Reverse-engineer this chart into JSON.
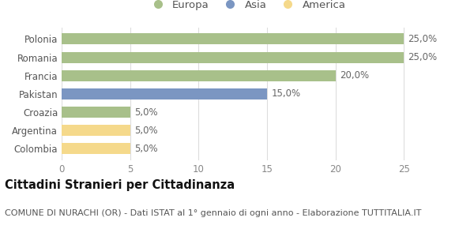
{
  "categories": [
    "Colombia",
    "Argentina",
    "Croazia",
    "Pakistan",
    "Francia",
    "Romania",
    "Polonia"
  ],
  "values": [
    5.0,
    5.0,
    5.0,
    15.0,
    20.0,
    25.0,
    25.0
  ],
  "colors": [
    "#f5d98b",
    "#f5d98b",
    "#a8c08a",
    "#7b96c2",
    "#a8c08a",
    "#a8c08a",
    "#a8c08a"
  ],
  "bar_labels": [
    "5,0%",
    "5,0%",
    "5,0%",
    "15,0%",
    "20,0%",
    "25,0%",
    "25,0%"
  ],
  "xlim": [
    0,
    27
  ],
  "xticks": [
    0,
    5,
    10,
    15,
    20,
    25
  ],
  "title": "Cittadini Stranieri per Cittadinanza",
  "subtitle": "COMUNE DI NURACHI (OR) - Dati ISTAT al 1° gennaio di ogni anno - Elaborazione TUTTITALIA.IT",
  "legend_labels": [
    "Europa",
    "Asia",
    "America"
  ],
  "legend_colors": [
    "#a8c08a",
    "#7b96c2",
    "#f5d98b"
  ],
  "background_color": "#ffffff",
  "title_fontsize": 10.5,
  "subtitle_fontsize": 8,
  "label_fontsize": 8.5,
  "tick_fontsize": 8.5,
  "legend_fontsize": 9.5
}
